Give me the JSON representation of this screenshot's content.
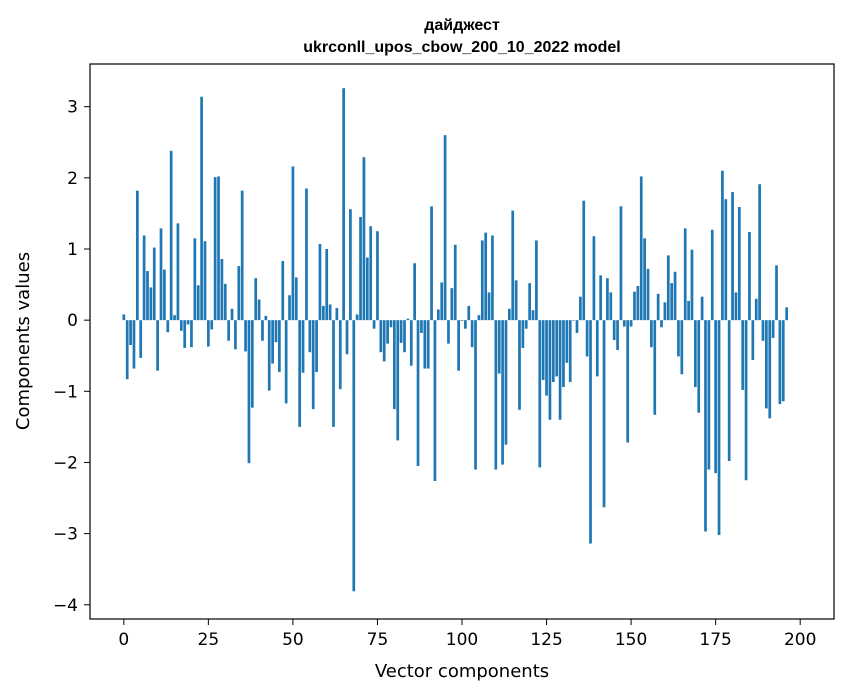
{
  "chart_data": {
    "type": "bar",
    "title": "дайджест",
    "subtitle": "ukrconll_upos_cbow_200_10_2022 model",
    "xlabel": "Vector components",
    "ylabel": "Components values",
    "xlim": [
      -10,
      210
    ],
    "ylim": [
      -4.2,
      3.6
    ],
    "xticks": [
      0,
      25,
      50,
      75,
      100,
      125,
      150,
      175,
      200
    ],
    "xtick_labels": [
      "0",
      "25",
      "50",
      "75",
      "100",
      "125",
      "150",
      "175",
      "200"
    ],
    "yticks": [
      -4,
      -3,
      -2,
      -1,
      0,
      1,
      2,
      3
    ],
    "ytick_labels": [
      "−4",
      "−3",
      "−2",
      "−1",
      "0",
      "1",
      "2",
      "3"
    ],
    "bar_color": "#1f77b4",
    "grid": false,
    "values": [
      0.08,
      -0.83,
      -0.35,
      -0.68,
      1.82,
      -0.53,
      1.19,
      0.69,
      0.46,
      1.02,
      -0.71,
      1.29,
      0.71,
      -0.17,
      2.38,
      0.07,
      1.36,
      -0.15,
      -0.39,
      -0.06,
      -0.38,
      1.15,
      0.49,
      3.14,
      1.11,
      -0.37,
      -0.13,
      2.01,
      2.02,
      0.86,
      0.51,
      -0.29,
      0.16,
      -0.41,
      0.76,
      1.82,
      -0.44,
      -2.01,
      -1.23,
      0.59,
      0.29,
      -0.29,
      0.06,
      -0.99,
      -0.61,
      -0.31,
      -0.73,
      0.83,
      -1.17,
      0.35,
      2.16,
      0.6,
      -1.5,
      -0.74,
      1.85,
      -0.45,
      -1.25,
      -0.73,
      1.07,
      0.2,
      1.0,
      0.22,
      -1.5,
      0.17,
      -0.97,
      3.26,
      -0.48,
      1.56,
      -3.81,
      0.08,
      1.45,
      2.29,
      0.88,
      1.32,
      -0.12,
      1.25,
      -0.45,
      -0.58,
      -0.33,
      -0.1,
      -1.25,
      -1.69,
      -0.32,
      -0.45,
      0.02,
      -0.64,
      0.8,
      -2.05,
      -0.18,
      -0.68,
      -0.68,
      1.6,
      -2.26,
      0.15,
      0.53,
      2.6,
      -0.33,
      0.45,
      1.06,
      -0.71,
      -0.01,
      -0.12,
      0.2,
      -0.38,
      -2.1,
      0.07,
      1.12,
      1.23,
      0.39,
      1.19,
      -2.1,
      -0.75,
      -2.03,
      -1.75,
      0.16,
      1.54,
      0.56,
      -1.26,
      -0.39,
      -0.12,
      0.52,
      0.14,
      1.12,
      -2.07,
      -0.84,
      -1.06,
      -1.4,
      -0.87,
      -0.79,
      -1.4,
      -0.94,
      -0.6,
      -0.87,
      0.0,
      -0.18,
      0.33,
      1.68,
      -0.51,
      -3.14,
      1.18,
      -0.79,
      0.63,
      -2.63,
      0.59,
      0.39,
      -0.28,
      -0.42,
      1.6,
      -0.09,
      -1.72,
      -0.09,
      0.4,
      0.48,
      2.02,
      1.15,
      0.72,
      -0.38,
      -1.33,
      0.37,
      -0.1,
      0.25,
      0.91,
      0.52,
      0.68,
      -0.51,
      -0.76,
      1.29,
      0.27,
      0.99,
      -0.94,
      -1.3,
      0.33,
      -2.97,
      -2.1,
      1.27,
      -2.15,
      -3.02,
      2.1,
      1.7,
      -1.98,
      1.8,
      0.39,
      1.59,
      -0.98,
      -2.25,
      1.24,
      -0.56,
      0.3,
      1.91,
      -0.29,
      -1.24,
      -1.38,
      -0.25,
      0.77,
      -1.18,
      -1.14,
      0.18
    ]
  }
}
